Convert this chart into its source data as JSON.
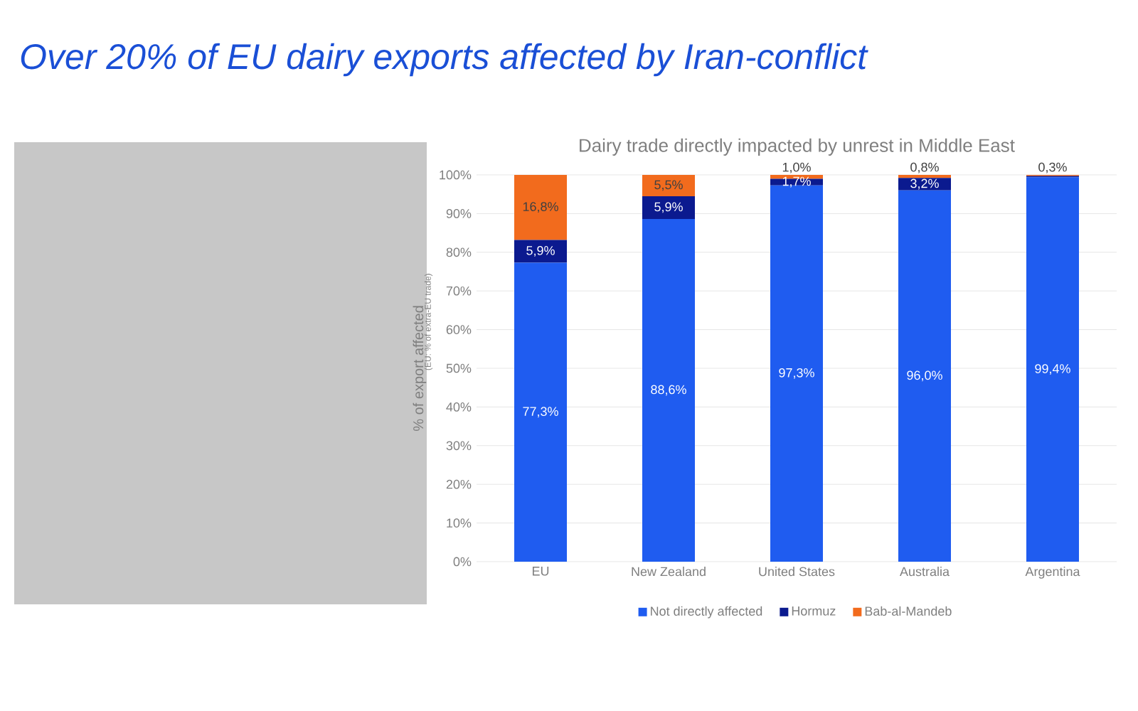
{
  "chart_data": {
    "type": "bar",
    "stacked": true,
    "title": "Over 20% of EU dairy exports affected by Iran-conflict",
    "subtitle": "Dairy trade directly impacted by unrest in Middle East",
    "ylabel": "% of export affected",
    "annotations": [
      "(EU: % of extra-EU trade)"
    ],
    "categories": [
      "EU",
      "New Zealand",
      "United States",
      "Australia",
      "Argentina"
    ],
    "series": [
      {
        "name": "Not directly affected",
        "color": "#1f5cf0",
        "values": [
          77.3,
          88.6,
          97.3,
          96.0,
          99.4
        ],
        "value_labels": [
          "77,3%",
          "88,6%",
          "97,3%",
          "96,0%",
          "99,4%"
        ]
      },
      {
        "name": "Hormuz",
        "color": "#0b1a8f",
        "values": [
          5.9,
          5.9,
          1.7,
          3.2,
          0.3
        ],
        "value_labels": [
          "5,9%",
          "5,9%",
          "1,7%",
          "3,2%",
          null
        ]
      },
      {
        "name": "Bab-al-Mandeb",
        "color": "#f26b1d",
        "values": [
          16.8,
          5.5,
          1.0,
          0.8,
          0.3
        ],
        "value_labels": [
          "16,8%",
          "5,5%",
          "1,0%",
          "0,8%",
          "0,3%"
        ]
      }
    ],
    "ylim": [
      0,
      100
    ],
    "yticks": [
      {
        "value": 0,
        "label": "0%"
      },
      {
        "value": 10,
        "label": "10%"
      },
      {
        "value": 20,
        "label": "20%"
      },
      {
        "value": 30,
        "label": "30%"
      },
      {
        "value": 40,
        "label": "40%"
      },
      {
        "value": 50,
        "label": "50%"
      },
      {
        "value": 60,
        "label": "60%"
      },
      {
        "value": 70,
        "label": "70%"
      },
      {
        "value": 80,
        "label": "80%"
      },
      {
        "value": 90,
        "label": "90%"
      },
      {
        "value": 100,
        "label": "100%"
      }
    ],
    "grid": "y",
    "legend": "bottom"
  }
}
